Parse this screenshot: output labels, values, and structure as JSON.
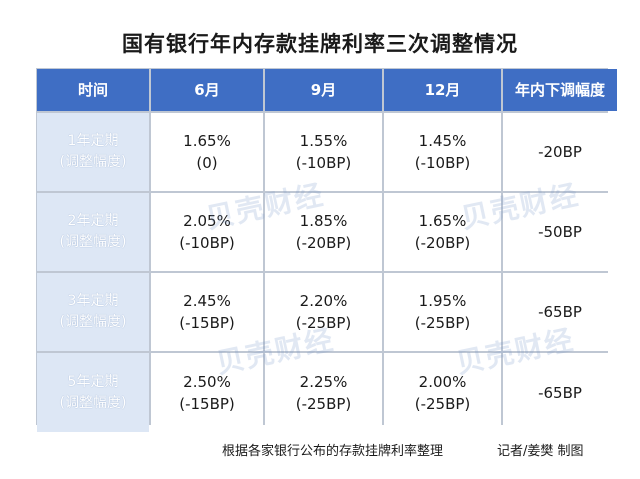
{
  "title": "国有银行年内存款挂牌利率三次调整情况",
  "header": [
    "时间",
    "6月",
    "9月",
    "12月",
    "年内下调幅度"
  ],
  "rows": [
    {
      "term": "1年定期",
      "term_sub": "(调整幅度)",
      "jun": "1.65%",
      "jun_adj": "(0)",
      "sep": "1.55%",
      "sep_adj": "(-10BP)",
      "dec": "1.45%",
      "dec_adj": "(-10BP)",
      "total": "-20BP"
    },
    {
      "term": "2年定期",
      "term_sub": "(调整幅度)",
      "jun": "2.05%",
      "jun_adj": "(-10BP)",
      "sep": "1.85%",
      "sep_adj": "(-20BP)",
      "dec": "1.65%",
      "dec_adj": "(-20BP)",
      "total": "-50BP"
    },
    {
      "term": "3年定期",
      "term_sub": "(调整幅度)",
      "jun": "2.45%",
      "jun_adj": "(-15BP)",
      "sep": "2.20%",
      "sep_adj": "(-25BP)",
      "dec": "1.95%",
      "dec_adj": "(-25BP)",
      "total": "-65BP"
    },
    {
      "term": "5年定期",
      "term_sub": "(调整幅度)",
      "jun": "2.50%",
      "jun_adj": "(-15BP)",
      "sep": "2.25%",
      "sep_adj": "(-25BP)",
      "dec": "2.00%",
      "dec_adj": "(-25BP)",
      "total": "-65BP"
    }
  ],
  "watermark": "贝壳财经",
  "source_note": "根据各家银行公布的存款挂牌利率整理",
  "credit": "记者/姜樊 制图",
  "colors": {
    "header_bg": "#3f6ec4",
    "rowhead_bg": "#dde7f5",
    "grid": "#bfc7d3"
  }
}
